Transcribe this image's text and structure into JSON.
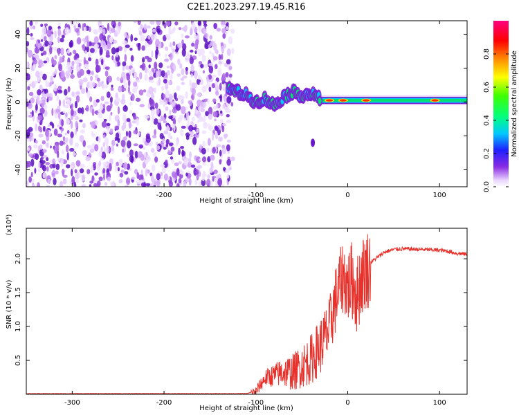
{
  "title": "C2E1.2023.297.19.45.R16",
  "chart_data": [
    {
      "type": "heatmap",
      "xlabel": "Height of straight line (km)",
      "ylabel": "Frequency (Hz)",
      "xlim": [
        -350,
        130
      ],
      "ylim": [
        -50,
        48
      ],
      "xticks": [
        -300,
        -200,
        -100,
        0,
        100
      ],
      "yticks": [
        -40,
        -20,
        0,
        20,
        40
      ],
      "colorbar": {
        "label": "Normalized spectral amplitude",
        "range": [
          0,
          1
        ],
        "ticks": [
          "0.0",
          "0.2",
          "0.4",
          "0.6",
          "0.8"
        ],
        "colormap": "rainbow (white-purple-blue-cyan-green-yellow-red-magenta)"
      },
      "features": [
        {
          "description": "diffuse noise",
          "x_range": [
            -350,
            -125
          ],
          "freq_range": [
            -50,
            48
          ]
        },
        {
          "description": "wavy signal trace",
          "x": [
            -130,
            -110,
            -100,
            -90,
            -80,
            -70,
            -60,
            -50,
            -40,
            -30
          ],
          "freq": [
            8,
            4,
            0,
            2,
            -2,
            3,
            6,
            4,
            5,
            2
          ]
        },
        {
          "description": "steady signal trace",
          "x_range": [
            -30,
            130
          ],
          "freq": 1
        }
      ]
    },
    {
      "type": "line",
      "xlabel": "Height of straight line (km)",
      "ylabel": "SNR (10 * v/v)",
      "y_multiplier": "(x10⁴)",
      "xlim": [
        -350,
        130
      ],
      "ylim": [
        0,
        2.45
      ],
      "xticks": [
        -300,
        -200,
        -100,
        0,
        100
      ],
      "yticks": [
        "0.5",
        "1.0",
        "1.5",
        "2.0"
      ],
      "series": [
        {
          "color": "#e8312b",
          "x": [
            -350,
            -300,
            -200,
            -110,
            -100,
            -95,
            -90,
            -80,
            -70,
            -60,
            -50,
            -40,
            -30,
            -20,
            -15,
            -10,
            -5,
            0,
            5,
            10,
            15,
            20,
            30,
            40,
            50,
            60,
            80,
            100,
            110,
            120,
            130
          ],
          "y": [
            0.01,
            0.01,
            0.01,
            0.01,
            0.05,
            0.15,
            0.25,
            0.3,
            0.35,
            0.35,
            0.45,
            0.55,
            0.75,
            1.0,
            1.35,
            1.6,
            1.8,
            1.65,
            1.75,
            1.5,
            1.8,
            1.9,
            2.0,
            2.1,
            2.14,
            2.15,
            2.14,
            2.13,
            2.11,
            2.08,
            2.07
          ]
        }
      ]
    }
  ]
}
